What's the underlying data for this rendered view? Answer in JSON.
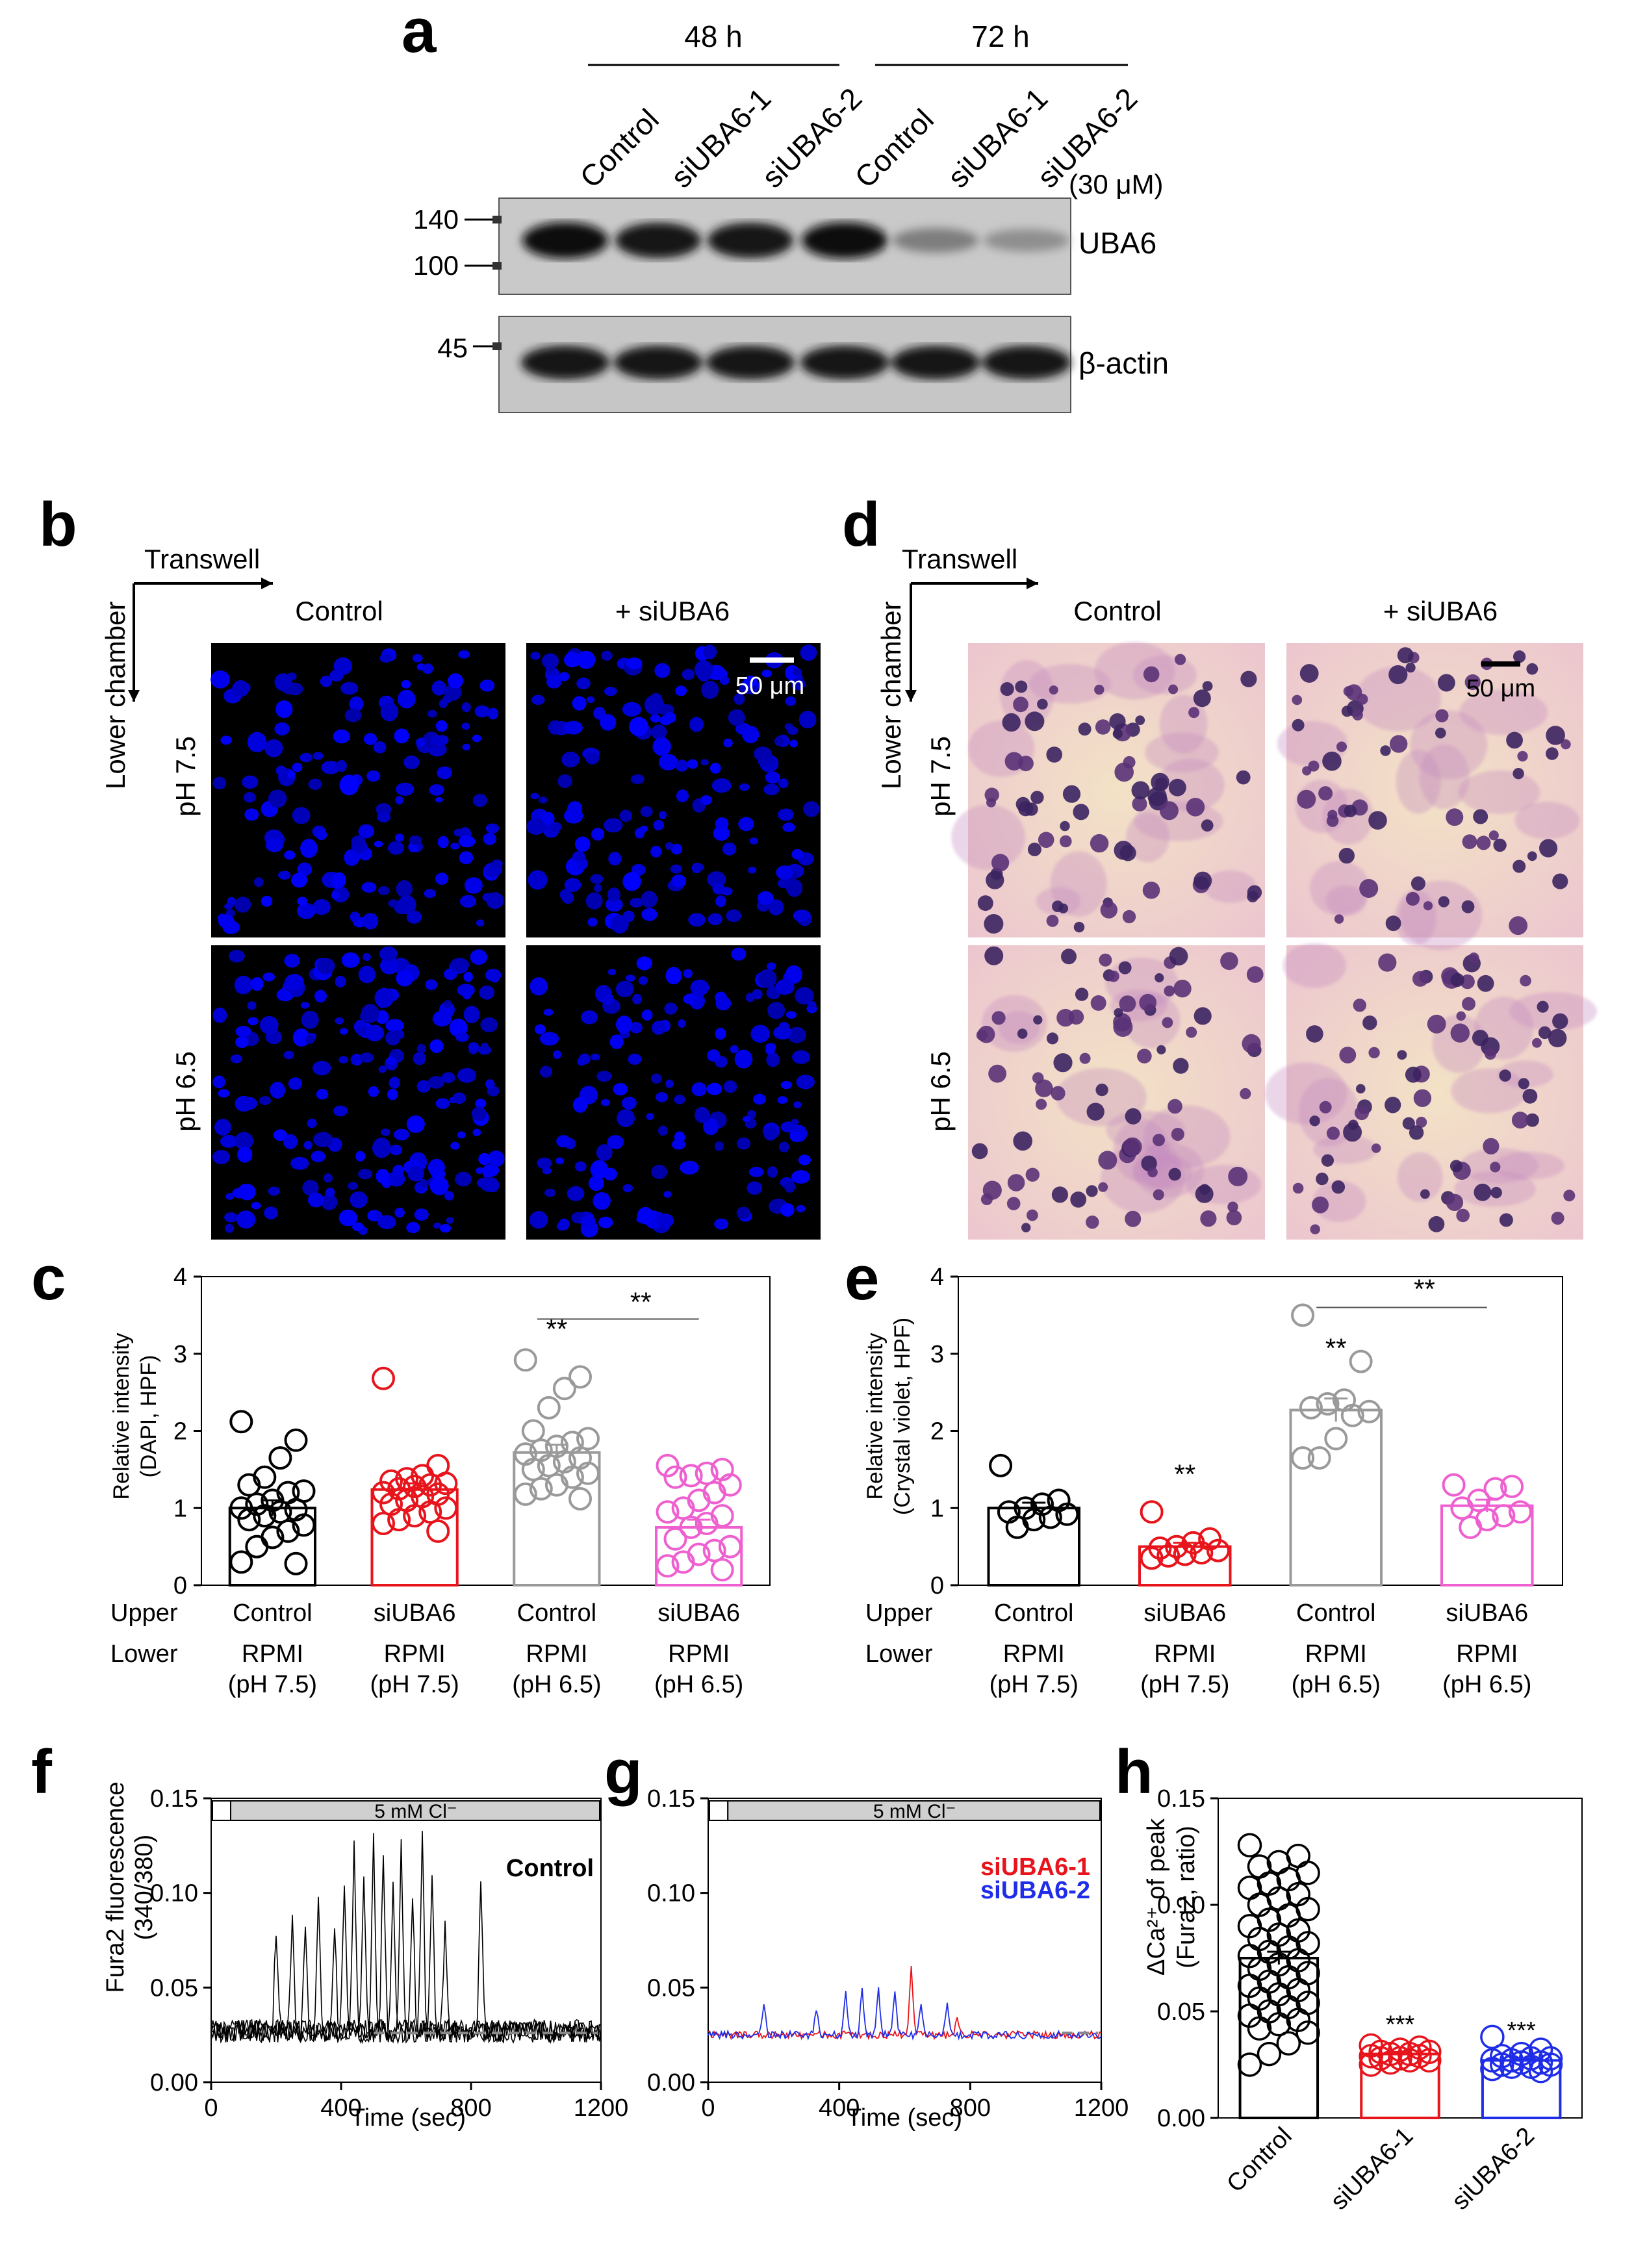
{
  "panel_labels": {
    "a": "a",
    "b": "b",
    "c": "c",
    "d": "d",
    "e": "e",
    "f": "f",
    "g": "g",
    "h": "h"
  },
  "blot": {
    "time_labels": [
      "48 h",
      "72 h"
    ],
    "lanes": [
      "Control",
      "siUBA6-1",
      "siUBA6-2",
      "Control",
      "siUBA6-1",
      "siUBA6-2"
    ],
    "concentration": "(30 μM)",
    "markers_top": [
      "140",
      "100"
    ],
    "markers_bottom": [
      "45"
    ],
    "band_labels": [
      "UBA6",
      "β-actin"
    ],
    "uba6_intensity": [
      1.0,
      0.95,
      0.95,
      1.0,
      0.35,
      0.25
    ],
    "actin_intensity": [
      1.0,
      1.0,
      1.0,
      1.0,
      1.0,
      1.0
    ]
  },
  "micro_dapi": {
    "arrow_h": "Transwell",
    "arrow_v": "Lower chamber",
    "col_labels": [
      "Control",
      "+ siUBA6"
    ],
    "row_labels": [
      "pH 7.5",
      "pH 6.5"
    ],
    "scale": "50 μm"
  },
  "micro_cv": {
    "arrow_h": "Transwell",
    "arrow_v": "Lower chamber",
    "col_labels": [
      "Control",
      "+ siUBA6"
    ],
    "row_labels": [
      "pH 7.5",
      "pH 6.5"
    ],
    "scale": "50 μm"
  },
  "colors": {
    "control": "#000000",
    "siUBA6": "#e8141c",
    "control_acid": "#9a9a9a",
    "siUBA6_acid": "#ee5fd0",
    "si2": "#1f2de8"
  },
  "chart_data": [
    {
      "panel": "c",
      "type": "bar",
      "ylabel": "Relative intensity",
      "ylabel2": "(DAPI, HPF)",
      "ylim": [
        0,
        4
      ],
      "yticks": [
        "0",
        "1",
        "2",
        "3",
        "4"
      ],
      "row_labels": [
        "Upper",
        "Lower"
      ],
      "upper": [
        "Control",
        "siUBA6",
        "Control",
        "siUBA6"
      ],
      "lower": [
        "RPMI",
        "RPMI",
        "RPMI",
        "RPMI"
      ],
      "lower_ph": [
        "(pH 7.5)",
        "(pH 7.5)",
        "(pH 6.5)",
        "(pH 6.5)"
      ],
      "values": [
        1.0,
        1.24,
        1.72,
        0.75
      ],
      "errors": [
        0.1,
        0.08,
        0.1,
        0.1
      ],
      "points": [
        [
          2.12,
          1.88,
          1.65,
          1.4,
          1.3,
          1.22,
          1.2,
          1.1,
          1.05,
          1.0,
          0.98,
          0.95,
          0.9,
          0.85,
          0.78,
          0.7,
          0.62,
          0.5,
          0.3,
          0.28
        ],
        [
          2.68,
          1.55,
          1.42,
          1.38,
          1.35,
          1.32,
          1.3,
          1.28,
          1.25,
          1.2,
          1.18,
          1.15,
          1.1,
          1.05,
          1.0,
          0.95,
          0.9,
          0.85,
          0.8,
          0.7
        ],
        [
          2.92,
          2.7,
          2.55,
          2.3,
          2.0,
          1.9,
          1.85,
          1.8,
          1.75,
          1.7,
          1.65,
          1.6,
          1.55,
          1.5,
          1.45,
          1.4,
          1.3,
          1.25,
          1.18,
          1.12
        ],
        [
          1.55,
          1.5,
          1.45,
          1.42,
          1.4,
          1.3,
          1.2,
          1.1,
          1.0,
          0.95,
          0.9,
          0.8,
          0.75,
          0.6,
          0.5,
          0.45,
          0.4,
          0.3,
          0.25,
          0.2
        ]
      ],
      "annotations": [
        "**",
        "**"
      ]
    },
    {
      "panel": "e",
      "type": "bar",
      "ylabel": "Relative intensity",
      "ylabel2": "(Crystal violet, HPF)",
      "ylim": [
        0,
        4
      ],
      "yticks": [
        "0",
        "1",
        "2",
        "3",
        "4"
      ],
      "row_labels": [
        "Upper",
        "Lower"
      ],
      "upper": [
        "Control",
        "siUBA6",
        "Control",
        "siUBA6"
      ],
      "lower": [
        "RPMI",
        "RPMI",
        "RPMI",
        "RPMI"
      ],
      "lower_ph": [
        "(pH 7.5)",
        "(pH 7.5)",
        "(pH 6.5)",
        "(pH 6.5)"
      ],
      "values": [
        1.0,
        0.5,
        2.27,
        1.03
      ],
      "errors": [
        0.07,
        0.05,
        0.15,
        0.08
      ],
      "points": [
        [
          1.55,
          1.1,
          1.05,
          1.0,
          0.95,
          0.92,
          0.88,
          0.85,
          0.75
        ],
        [
          0.95,
          0.6,
          0.55,
          0.5,
          0.48,
          0.45,
          0.42,
          0.4,
          0.38,
          0.35
        ],
        [
          3.5,
          2.9,
          2.4,
          2.35,
          2.3,
          2.25,
          2.2,
          1.9,
          1.65,
          1.65
        ],
        [
          1.3,
          1.28,
          1.25,
          1.1,
          1.0,
          0.95,
          0.9,
          0.85,
          0.75
        ]
      ],
      "annotations": [
        "**",
        "**",
        "**"
      ]
    },
    {
      "panel": "f",
      "type": "line",
      "xlabel": "Time (sec)",
      "ylabel": "Fura2 fluorescence",
      "ylabel2": "(340/380)",
      "xlim": [
        0,
        1200
      ],
      "ylim": [
        0,
        0.15
      ],
      "xticks": [
        "0",
        "400",
        "800",
        "1200"
      ],
      "yticks": [
        "0.00",
        "0.05",
        "0.10",
        "0.15"
      ],
      "stimulus": "5 mM Cl⁻",
      "legend": "Control",
      "spikes": [
        {
          "t": 200,
          "a": 0.055
        },
        {
          "t": 250,
          "a": 0.065
        },
        {
          "t": 290,
          "a": 0.06
        },
        {
          "t": 330,
          "a": 0.07
        },
        {
          "t": 380,
          "a": 0.06
        },
        {
          "t": 410,
          "a": 0.075
        },
        {
          "t": 440,
          "a": 0.1
        },
        {
          "t": 470,
          "a": 0.085
        },
        {
          "t": 500,
          "a": 0.105
        },
        {
          "t": 530,
          "a": 0.095
        },
        {
          "t": 560,
          "a": 0.08
        },
        {
          "t": 585,
          "a": 0.1
        },
        {
          "t": 620,
          "a": 0.075
        },
        {
          "t": 650,
          "a": 0.105
        },
        {
          "t": 680,
          "a": 0.085
        },
        {
          "t": 720,
          "a": 0.06
        },
        {
          "t": 830,
          "a": 0.08
        }
      ]
    },
    {
      "panel": "g",
      "type": "line",
      "xlabel": "Time (sec)",
      "ylabel": "",
      "xlim": [
        0,
        1200
      ],
      "ylim": [
        0,
        0.15
      ],
      "xticks": [
        "0",
        "400",
        "800",
        "1200"
      ],
      "yticks": [
        "0.00",
        "0.05",
        "0.10",
        "0.15"
      ],
      "stimulus": "5 mM Cl⁻",
      "series": [
        {
          "name": "siUBA6-1",
          "color": "#e8141c",
          "spikes": [
            {
              "t": 620,
              "a": 0.036
            },
            {
              "t": 760,
              "a": 0.01
            }
          ]
        },
        {
          "name": "siUBA6-2",
          "color": "#1f2de8",
          "spikes": [
            {
              "t": 170,
              "a": 0.018
            },
            {
              "t": 330,
              "a": 0.014
            },
            {
              "t": 420,
              "a": 0.022
            },
            {
              "t": 470,
              "a": 0.025
            },
            {
              "t": 520,
              "a": 0.024
            },
            {
              "t": 570,
              "a": 0.022
            },
            {
              "t": 650,
              "a": 0.018
            },
            {
              "t": 730,
              "a": 0.016
            }
          ]
        }
      ]
    },
    {
      "panel": "h",
      "type": "bar",
      "ylabel": "ΔCa²⁺ of peak",
      "ylabel2": "(Fura2, ratio)",
      "ylim": [
        0,
        0.15
      ],
      "yticks": [
        "0.00",
        "0.05",
        "0.10",
        "0.15"
      ],
      "categories": [
        "Control",
        "siUBA6-1",
        "siUBA6-2"
      ],
      "values": [
        0.075,
        0.03,
        0.027
      ],
      "errors": [
        0.003,
        0.001,
        0.001
      ],
      "points": [
        [
          0.128,
          0.123,
          0.12,
          0.118,
          0.115,
          0.112,
          0.11,
          0.108,
          0.105,
          0.103,
          0.1,
          0.098,
          0.095,
          0.093,
          0.09,
          0.088,
          0.086,
          0.084,
          0.082,
          0.08,
          0.078,
          0.076,
          0.074,
          0.072,
          0.07,
          0.068,
          0.066,
          0.064,
          0.062,
          0.06,
          0.058,
          0.056,
          0.054,
          0.052,
          0.05,
          0.048,
          0.046,
          0.044,
          0.042,
          0.04,
          0.035,
          0.03,
          0.025
        ],
        [
          0.034,
          0.033,
          0.032,
          0.031,
          0.031,
          0.03,
          0.03,
          0.029,
          0.029,
          0.028,
          0.028,
          0.027,
          0.027,
          0.026,
          0.025
        ],
        [
          0.038,
          0.032,
          0.03,
          0.029,
          0.028,
          0.028,
          0.027,
          0.027,
          0.026,
          0.026,
          0.025,
          0.025,
          0.024,
          0.024,
          0.023,
          0.022
        ]
      ],
      "annotations": [
        "***",
        "***"
      ]
    }
  ]
}
